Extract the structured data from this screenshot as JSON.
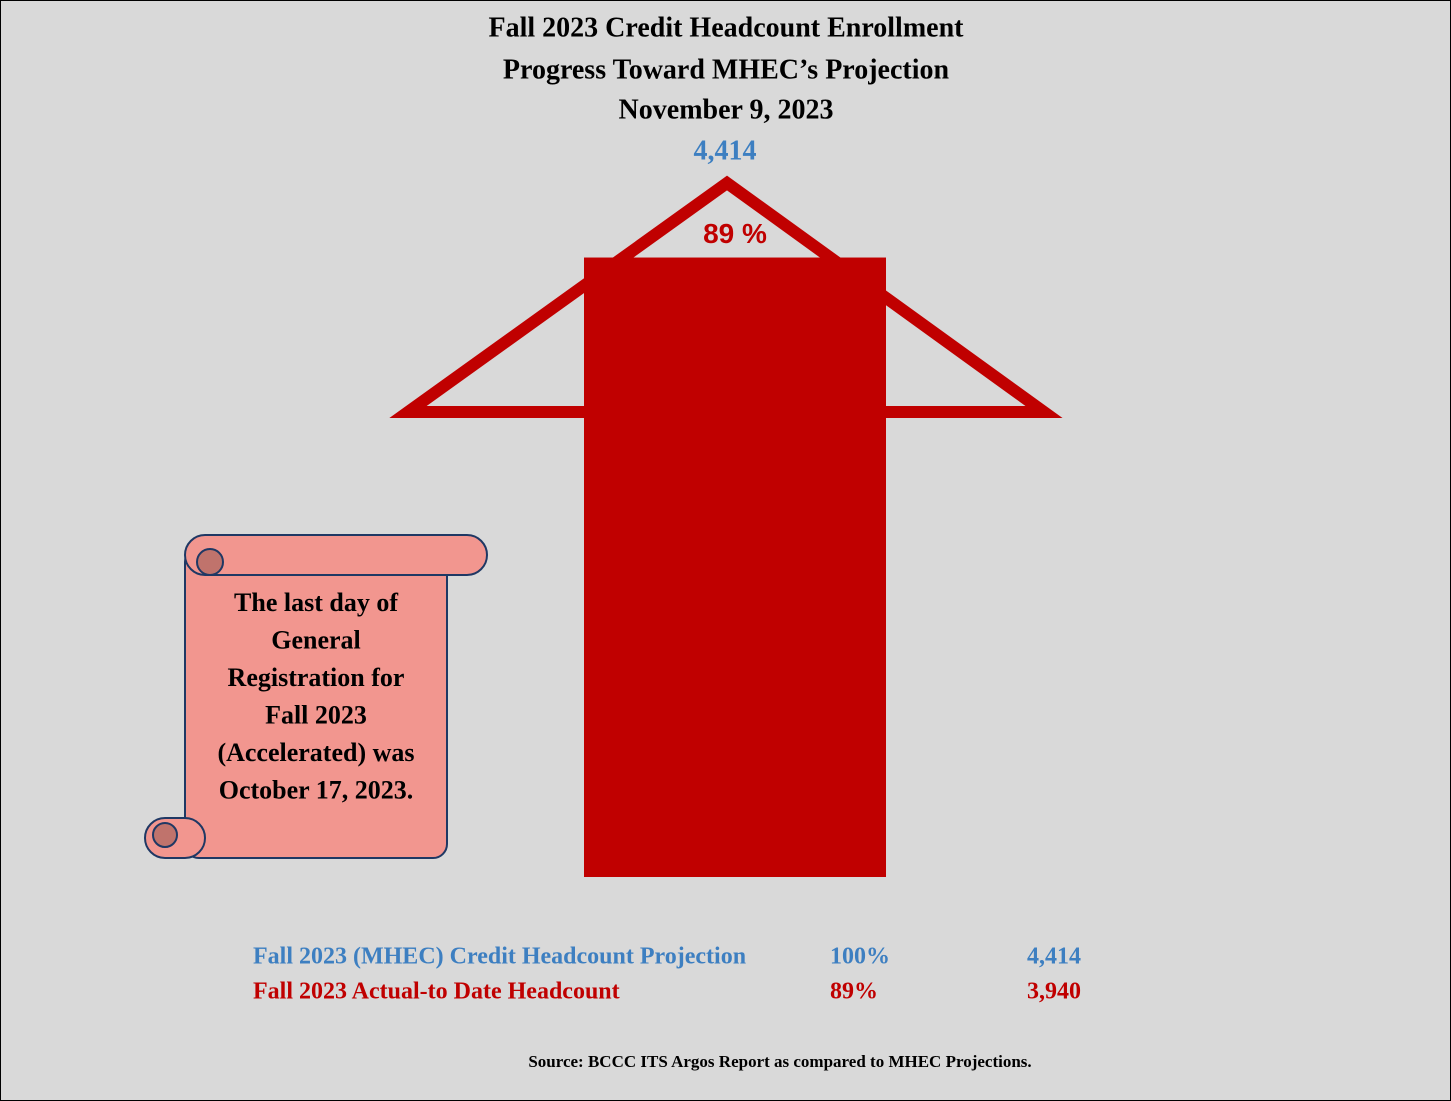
{
  "chart_data": {
    "type": "progress",
    "title": [
      "Fall 2023 Credit Headcount Enrollment",
      "Progress Toward MHEC’s Projection",
      "November 9, 2023"
    ],
    "bar_percent_label": "89 %",
    "series": [
      {
        "name": "Fall 2023 (MHEC) Credit Headcount Projection",
        "color": "#3d7fc1",
        "values": [
          4414
        ],
        "value_labels": [
          "4,414"
        ],
        "percent": 100,
        "percent_label": "100%"
      },
      {
        "name": "Fall 2023 Actual-to Date Headcount",
        "color": "#c00000",
        "values": [
          3940
        ],
        "value_labels": [
          "3,940"
        ],
        "percent": 89,
        "percent_label": "89%"
      }
    ],
    "note": [
      "The last day of",
      "General",
      "Registration for",
      "Fall 2023",
      "(Accelerated) was",
      "October 17, 2023."
    ],
    "source": "Source: BCCC ITS Argos Report as compared to MHEC Projections."
  }
}
